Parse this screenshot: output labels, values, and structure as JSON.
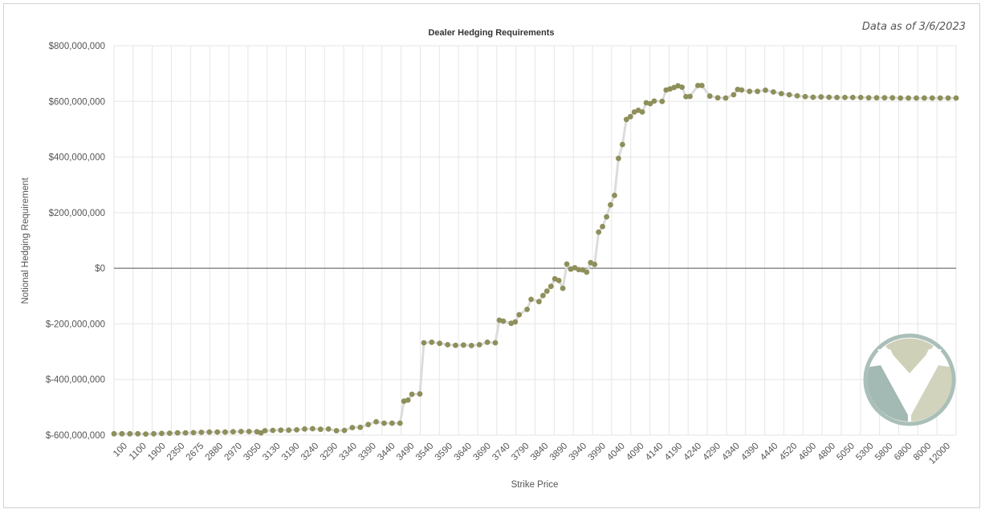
{
  "header": {
    "as_of": "Data as of 3/6/2023"
  },
  "chart_data": {
    "type": "line",
    "title": "Dealer Hedging Requirements",
    "xlabel": "Strike Price",
    "ylabel": "Notional Hedging Requirement",
    "x_axis_kind": "categorical",
    "ylim": [
      -600000000,
      800000000
    ],
    "y_ticks": [
      {
        "value": 800000000,
        "label": "$800,000,000"
      },
      {
        "value": 600000000,
        "label": "$600,000,000"
      },
      {
        "value": 400000000,
        "label": "$400,000,000"
      },
      {
        "value": 200000000,
        "label": "$200,000,000"
      },
      {
        "value": 0,
        "label": "$0"
      },
      {
        "value": -200000000,
        "label": "$-200,000,000"
      },
      {
        "value": -400000000,
        "label": "$-400,000,000"
      },
      {
        "value": -600000000,
        "label": "$-600,000,000"
      }
    ],
    "x_tick_labels": [
      "100",
      "1100",
      "1900",
      "2350",
      "2675",
      "2880",
      "2970",
      "3050",
      "3130",
      "3190",
      "3240",
      "3290",
      "3340",
      "3390",
      "3440",
      "3490",
      "3540",
      "3590",
      "3640",
      "3690",
      "3740",
      "3790",
      "3840",
      "3890",
      "3940",
      "3990",
      "4040",
      "4090",
      "4140",
      "4190",
      "4240",
      "4290",
      "4340",
      "4390",
      "4440",
      "4520",
      "4600",
      "4800",
      "5050",
      "5300",
      "5800",
      "6800",
      "8000",
      "12000"
    ],
    "grid": true,
    "legend": "none",
    "colors": {
      "marker": "#8e8f5a",
      "line": "#dcdcdc",
      "zero_line": "#555555",
      "grid": "#e6e6e6"
    },
    "series": [
      {
        "values": [
          [
            0,
            -595000000
          ],
          [
            0.5,
            -595000000
          ],
          [
            1,
            -595000000
          ],
          [
            1.5,
            -595000000
          ],
          [
            2,
            -596000000
          ],
          [
            2.5,
            -595000000
          ],
          [
            3,
            -594000000
          ],
          [
            3.5,
            -593000000
          ],
          [
            4,
            -592000000
          ],
          [
            4.5,
            -592000000
          ],
          [
            5,
            -591000000
          ],
          [
            5.5,
            -590000000
          ],
          [
            6,
            -589000000
          ],
          [
            6.5,
            -589000000
          ],
          [
            7,
            -589000000
          ],
          [
            7.5,
            -588000000
          ],
          [
            8,
            -587000000
          ],
          [
            8.5,
            -587000000
          ],
          [
            9,
            -588000000
          ],
          [
            9.25,
            -592000000
          ],
          [
            9.5,
            -584000000
          ],
          [
            10,
            -583000000
          ],
          [
            10.5,
            -582000000
          ],
          [
            11,
            -582000000
          ],
          [
            11.5,
            -581000000
          ],
          [
            12,
            -578000000
          ],
          [
            12.5,
            -577000000
          ],
          [
            13,
            -579000000
          ],
          [
            13.5,
            -578000000
          ],
          [
            14,
            -584000000
          ],
          [
            14.5,
            -583000000
          ],
          [
            15,
            -573000000
          ],
          [
            15.5,
            -572000000
          ],
          [
            16,
            -562000000
          ],
          [
            16.5,
            -552000000
          ],
          [
            17,
            -557000000
          ],
          [
            17.5,
            -557000000
          ],
          [
            18,
            -557000000
          ],
          [
            18.25,
            -478000000
          ],
          [
            18.5,
            -474000000
          ],
          [
            18.75,
            -453000000
          ],
          [
            19.25,
            -452000000
          ],
          [
            19.5,
            -268000000
          ],
          [
            20,
            -266000000
          ],
          [
            20.5,
            -270000000
          ],
          [
            21,
            -275000000
          ],
          [
            21.5,
            -277000000
          ],
          [
            22,
            -276000000
          ],
          [
            22.5,
            -278000000
          ],
          [
            23,
            -275000000
          ],
          [
            23.5,
            -266000000
          ],
          [
            24,
            -268000000
          ],
          [
            24.25,
            -187000000
          ],
          [
            24.5,
            -190000000
          ],
          [
            25,
            -198000000
          ],
          [
            25.25,
            -193000000
          ],
          [
            25.5,
            -167000000
          ],
          [
            26,
            -148000000
          ],
          [
            26.25,
            -112000000
          ],
          [
            26.75,
            -120000000
          ],
          [
            27,
            -98000000
          ],
          [
            27.25,
            -82000000
          ],
          [
            27.5,
            -65000000
          ],
          [
            27.75,
            -38000000
          ],
          [
            28,
            -44000000
          ],
          [
            28.25,
            -72000000
          ],
          [
            28.5,
            15000000
          ],
          [
            28.75,
            -3000000
          ],
          [
            29,
            2000000
          ],
          [
            29.25,
            -5000000
          ],
          [
            29.5,
            -6000000
          ],
          [
            29.75,
            -14000000
          ],
          [
            30,
            20000000
          ],
          [
            30.25,
            14000000
          ],
          [
            30.5,
            130000000
          ],
          [
            30.75,
            150000000
          ],
          [
            31,
            185000000
          ],
          [
            31.25,
            228000000
          ],
          [
            31.5,
            262000000
          ],
          [
            31.75,
            395000000
          ],
          [
            32,
            445000000
          ],
          [
            32.25,
            535000000
          ],
          [
            32.5,
            545000000
          ],
          [
            32.75,
            562000000
          ],
          [
            33,
            568000000
          ],
          [
            33.25,
            562000000
          ],
          [
            33.5,
            595000000
          ],
          [
            33.75,
            592000000
          ],
          [
            34,
            601000000
          ],
          [
            34.5,
            600000000
          ],
          [
            34.75,
            641000000
          ],
          [
            35,
            645000000
          ],
          [
            35.25,
            650000000
          ],
          [
            35.5,
            656000000
          ],
          [
            35.75,
            651000000
          ],
          [
            36,
            617000000
          ],
          [
            36.25,
            618000000
          ],
          [
            36.75,
            657000000
          ],
          [
            37,
            657000000
          ],
          [
            37.5,
            619000000
          ],
          [
            38,
            613000000
          ],
          [
            38.5,
            612000000
          ],
          [
            39,
            624000000
          ],
          [
            39.25,
            643000000
          ],
          [
            39.5,
            641000000
          ],
          [
            40,
            636000000
          ],
          [
            40.5,
            636000000
          ],
          [
            41,
            640000000
          ],
          [
            41.5,
            634000000
          ],
          [
            42,
            628000000
          ],
          [
            42.5,
            624000000
          ],
          [
            43,
            620000000
          ],
          [
            43.5,
            617000000
          ],
          [
            44,
            615000000
          ],
          [
            44.5,
            616000000
          ],
          [
            45,
            615000000
          ],
          [
            45.5,
            614000000
          ],
          [
            46,
            614000000
          ],
          [
            46.5,
            614000000
          ],
          [
            47,
            614000000
          ],
          [
            47.5,
            613000000
          ],
          [
            48,
            613000000
          ],
          [
            48.5,
            613000000
          ],
          [
            49,
            613000000
          ],
          [
            49.5,
            612000000
          ],
          [
            50,
            612000000
          ],
          [
            50.5,
            612000000
          ],
          [
            51,
            612000000
          ],
          [
            51.5,
            612000000
          ],
          [
            52,
            612000000
          ],
          [
            52.5,
            612000000
          ],
          [
            53,
            612000000
          ]
        ]
      }
    ]
  },
  "logo": {
    "name": "logo-badge",
    "colors": {
      "ring": "#a9bfb8",
      "left_wing": "#a3b9b3",
      "right_wing": "#d2d3bd",
      "top_arc": "#cfd0b8",
      "v_mark": "#ffffff"
    }
  }
}
